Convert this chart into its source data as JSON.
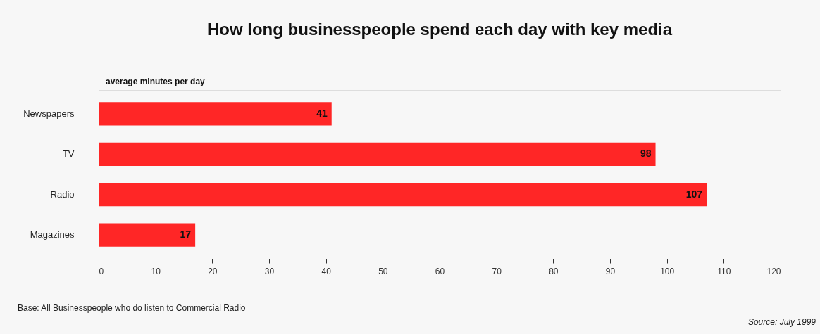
{
  "chart_data": {
    "type": "bar",
    "orientation": "horizontal",
    "title": "How long businesspeople spend each day with key media",
    "xlabel": "average minutes per day",
    "categories": [
      "Newspapers",
      "TV",
      "Radio",
      "Magazines"
    ],
    "values": [
      41,
      98,
      107,
      17
    ],
    "color": "#ff2626",
    "data_labels": true,
    "xlim": [
      0,
      120
    ],
    "xticks": [
      0,
      10,
      20,
      30,
      40,
      50,
      60,
      70,
      80,
      90,
      100,
      110,
      120
    ],
    "grid": false,
    "annotations": [
      "Base: All Businesspeople who do listen to Commercial Radio",
      "Source: July 1999"
    ]
  }
}
